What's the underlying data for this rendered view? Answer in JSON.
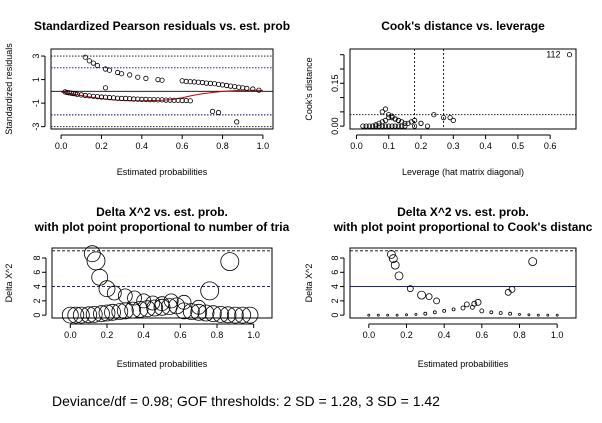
{
  "chart_data": [
    {
      "type": "scatter",
      "title": "Standardized Pearson residuals vs. est. prob",
      "xlabel": "Estimated probabilities",
      "ylabel": "Standardized residuals",
      "xlim": [
        -0.05,
        1.05
      ],
      "ylim": [
        -3.2,
        3.6
      ],
      "xticks": [
        "0.0",
        "0.2",
        "0.4",
        "0.6",
        "0.8",
        "1.0"
      ],
      "xtick_values": [
        0,
        0.2,
        0.4,
        0.6,
        0.8,
        1.0
      ],
      "yticks": [
        "-3",
        "-1",
        "1",
        "3"
      ],
      "ytick_values": [
        -3,
        -1,
        1,
        3
      ],
      "hlines": [
        {
          "y": 0,
          "style": "solid",
          "color": "#000000"
        },
        {
          "y": 2,
          "style": "dotted",
          "color": "#00008b"
        },
        {
          "y": -2,
          "style": "dotted",
          "color": "#00008b"
        },
        {
          "y": 3,
          "style": "dotted",
          "color": "#000000"
        },
        {
          "y": -3,
          "style": "dotted",
          "color": "#000000"
        }
      ],
      "points": {
        "x": [
          0.02,
          0.03,
          0.04,
          0.05,
          0.06,
          0.07,
          0.08,
          0.1,
          0.12,
          0.14,
          0.16,
          0.18,
          0.2,
          0.22,
          0.24,
          0.26,
          0.28,
          0.3,
          0.32,
          0.34,
          0.36,
          0.38,
          0.4,
          0.42,
          0.44,
          0.46,
          0.48,
          0.5,
          0.52,
          0.54,
          0.56,
          0.58,
          0.6,
          0.62,
          0.64,
          0.12,
          0.14,
          0.16,
          0.18,
          0.22,
          0.24,
          0.28,
          0.3,
          0.34,
          0.38,
          0.42,
          0.48,
          0.5,
          0.6,
          0.62,
          0.64,
          0.66,
          0.68,
          0.7,
          0.72,
          0.74,
          0.76,
          0.78,
          0.8,
          0.82,
          0.84,
          0.86,
          0.88,
          0.9,
          0.92,
          0.95,
          0.98,
          0.75,
          0.78,
          0.87,
          0.22
        ],
        "y": [
          -0.05,
          -0.1,
          -0.12,
          -0.15,
          -0.18,
          -0.2,
          -0.25,
          -0.3,
          -0.35,
          -0.38,
          -0.42,
          -0.45,
          -0.48,
          -0.5,
          -0.52,
          -0.55,
          -0.58,
          -0.6,
          -0.6,
          -0.62,
          -0.65,
          -0.66,
          -0.68,
          -0.68,
          -0.7,
          -0.7,
          -0.72,
          -0.72,
          -0.74,
          -0.74,
          -0.76,
          -0.76,
          -0.78,
          -0.78,
          -0.8,
          2.9,
          2.6,
          2.4,
          2.2,
          1.9,
          1.8,
          1.6,
          1.5,
          1.4,
          1.2,
          1.1,
          1.0,
          0.95,
          0.9,
          0.85,
          0.82,
          0.8,
          0.78,
          0.75,
          0.7,
          0.68,
          0.65,
          0.6,
          0.55,
          0.5,
          0.45,
          0.4,
          0.35,
          0.3,
          0.25,
          0.2,
          0.1,
          -1.7,
          -1.8,
          -2.6,
          0.3
        ]
      },
      "smooth": {
        "color": "#cc0000",
        "x": [
          0.0,
          0.05,
          0.1,
          0.15,
          0.2,
          0.25,
          0.3,
          0.35,
          0.4,
          0.45,
          0.5,
          0.55,
          0.6,
          0.65,
          0.7,
          0.75,
          0.8,
          0.85,
          0.9,
          0.95,
          1.0
        ],
        "y": [
          -0.05,
          -0.2,
          -0.35,
          -0.5,
          -0.62,
          -0.72,
          -0.78,
          -0.8,
          -0.8,
          -0.78,
          -0.75,
          -0.7,
          -0.55,
          -0.35,
          -0.2,
          -0.1,
          0.0,
          0.05,
          0.1,
          0.1,
          0.08
        ]
      }
    },
    {
      "type": "scatter",
      "title": "Cook's distance vs. leverage",
      "xlabel": "Leverage (hat matrix diagonal)",
      "ylabel": "Cook's distance",
      "xlim": [
        -0.02,
        0.68
      ],
      "ylim": [
        -0.01,
        0.27
      ],
      "xticks": [
        "0.0",
        "0.1",
        "0.2",
        "0.3",
        "0.4",
        "0.5",
        "0.6"
      ],
      "xtick_values": [
        0,
        0.1,
        0.2,
        0.3,
        0.4,
        0.5,
        0.6
      ],
      "yticks": [
        "0.00",
        "0.15"
      ],
      "ytick_values": [
        0.0,
        0.15
      ],
      "minor_ytick_values": [
        0.05,
        0.1,
        0.2,
        0.25
      ],
      "vlines": [
        0.18,
        0.27
      ],
      "hlines": [
        0.04
      ],
      "annotation": {
        "text": "112",
        "x": 0.61,
        "y": 0.25
      },
      "points": {
        "x": [
          0.02,
          0.03,
          0.04,
          0.05,
          0.06,
          0.07,
          0.08,
          0.09,
          0.1,
          0.11,
          0.12,
          0.13,
          0.14,
          0.15,
          0.06,
          0.07,
          0.08,
          0.09,
          0.1,
          0.11,
          0.12,
          0.13,
          0.14,
          0.15,
          0.16,
          0.17,
          0.18,
          0.2,
          0.22,
          0.08,
          0.09,
          0.1,
          0.11,
          0.12,
          0.13,
          0.24,
          0.29,
          0.3,
          0.66,
          0.18,
          0.2,
          0.27
        ],
        "y": [
          0.0,
          0.0,
          0.0,
          0.0,
          0.0,
          0.0,
          0.0,
          0.0,
          0.0,
          0.0,
          0.0,
          0.0,
          0.0,
          0.0,
          0.005,
          0.01,
          0.015,
          0.02,
          0.03,
          0.035,
          0.025,
          0.02,
          0.015,
          0.01,
          0.01,
          0.015,
          0.02,
          0.01,
          0.0,
          0.05,
          0.06,
          0.04,
          0.03,
          0.025,
          0.02,
          0.04,
          0.03,
          0.02,
          0.25,
          0.0,
          0.01,
          0.03
        ]
      }
    },
    {
      "type": "scatter",
      "title": "Delta X^2 vs. est. prob.",
      "subtitle": "with plot point proportional to number of tria",
      "xlabel": "Estimated probabilities",
      "ylabel": "Delta X^2",
      "xlim": [
        -0.1,
        1.1
      ],
      "ylim": [
        -0.4,
        9.4
      ],
      "xticks": [
        "0.0",
        "0.2",
        "0.4",
        "0.6",
        "0.8",
        "1.0"
      ],
      "xtick_values": [
        0,
        0.2,
        0.4,
        0.6,
        0.8,
        1.0
      ],
      "yticks": [
        "0",
        "2",
        "4",
        "6",
        "8"
      ],
      "ytick_values": [
        0,
        2,
        4,
        6,
        8
      ],
      "hlines": [
        {
          "y": 4,
          "style": "dashed",
          "color": "#00008b"
        },
        {
          "y": 9,
          "style": "dashed",
          "color": "#000000"
        }
      ],
      "points": {
        "x": [
          0.12,
          0.14,
          0.16,
          0.2,
          0.24,
          0.3,
          0.35,
          0.4,
          0.45,
          0.5,
          0.55,
          0.62,
          0.7,
          0.76,
          0.87,
          0.0,
          0.03,
          0.06,
          0.1,
          0.13,
          0.17,
          0.2,
          0.23,
          0.27,
          0.3,
          0.34,
          0.38,
          0.42,
          0.46,
          0.5,
          0.54,
          0.58,
          0.62,
          0.66,
          0.7,
          0.74,
          0.78,
          0.82,
          0.86,
          0.9,
          0.94,
          0.98
        ],
        "y": [
          8.6,
          7.6,
          5.3,
          3.7,
          3.1,
          2.7,
          2.4,
          2.0,
          1.7,
          1.6,
          2.0,
          1.8,
          1.1,
          3.4,
          7.5,
          0.0,
          0.0,
          0.0,
          0.05,
          0.1,
          0.2,
          0.3,
          0.4,
          0.5,
          0.6,
          0.7,
          0.8,
          0.9,
          1.0,
          1.1,
          1.2,
          1.3,
          0.6,
          0.5,
          0.4,
          0.3,
          0.2,
          0.1,
          0.05,
          0.0,
          0.0,
          0.0
        ],
        "size": [
          8,
          9,
          8,
          8,
          7,
          7,
          7,
          7,
          7,
          7,
          7,
          7,
          7,
          9,
          9,
          8,
          8,
          8,
          8,
          8,
          8,
          8,
          8,
          8,
          8,
          8,
          8,
          8,
          8,
          8,
          8,
          8,
          8,
          8,
          8,
          8,
          8,
          8,
          8,
          8,
          8,
          8
        ]
      }
    },
    {
      "type": "scatter",
      "title": "Delta X^2 vs. est. prob.",
      "subtitle": "with plot point proportional to Cook's distanc",
      "xlabel": "Estimated probabilities",
      "ylabel": "Delta X^2",
      "xlim": [
        -0.1,
        1.1
      ],
      "ylim": [
        -0.4,
        9.4
      ],
      "xticks": [
        "0.0",
        "0.2",
        "0.4",
        "0.6",
        "0.8",
        "1.0"
      ],
      "xtick_values": [
        0,
        0.2,
        0.4,
        0.6,
        0.8,
        1.0
      ],
      "yticks": [
        "0",
        "2",
        "4",
        "6",
        "8"
      ],
      "ytick_values": [
        0,
        2,
        4,
        6,
        8
      ],
      "hlines": [
        {
          "y": 4,
          "style": "solid",
          "color": "#00008b"
        },
        {
          "y": 9,
          "style": "dashed",
          "color": "#000000"
        }
      ],
      "points": {
        "x": [
          0.12,
          0.13,
          0.14,
          0.16,
          0.22,
          0.28,
          0.32,
          0.36,
          0.58,
          0.74,
          0.76,
          0.87,
          0.0,
          0.05,
          0.1,
          0.15,
          0.2,
          0.25,
          0.3,
          0.35,
          0.4,
          0.45,
          0.5,
          0.55,
          0.6,
          0.65,
          0.7,
          0.75,
          0.8,
          0.85,
          0.9,
          0.95,
          1.0,
          0.52,
          0.56
        ],
        "y": [
          8.5,
          7.9,
          7.0,
          5.5,
          3.7,
          2.8,
          2.6,
          2.0,
          1.8,
          3.2,
          3.6,
          7.5,
          0.0,
          0.0,
          0.0,
          0.0,
          0.05,
          0.1,
          0.2,
          0.4,
          0.6,
          0.8,
          1.0,
          1.1,
          0.6,
          0.4,
          0.3,
          0.2,
          0.1,
          0.05,
          0.0,
          0.0,
          0.0,
          1.5,
          1.6
        ],
        "size": [
          4,
          4,
          4,
          4,
          3,
          4,
          3,
          3,
          3,
          3,
          3,
          4,
          1,
          1,
          1,
          1,
          1,
          1,
          1.5,
          1.5,
          1.5,
          1.5,
          2,
          2,
          2,
          1.5,
          1.5,
          1.5,
          1,
          1,
          1,
          1,
          1,
          2.5,
          2.5
        ]
      }
    }
  ],
  "footer": "Deviance/df = 0.98; GOF thresholds: 2 SD = 1.28, 3 SD = 1.42"
}
